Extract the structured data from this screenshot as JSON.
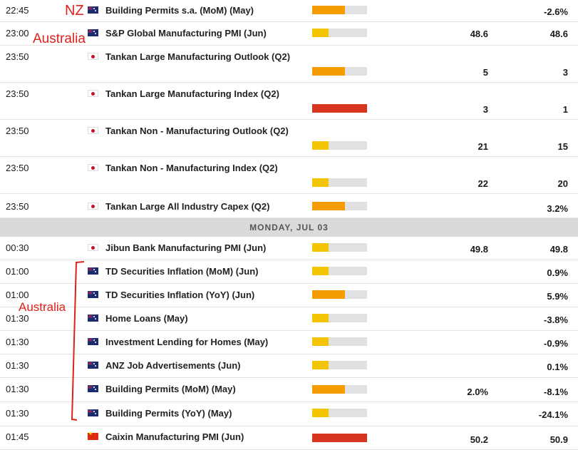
{
  "annotations": {
    "nz": "NZ",
    "australia_top": "Australia",
    "australia_side": "Australia"
  },
  "colors": {
    "low": "#f5c400",
    "medium": "#f59c00",
    "high": "#d73520",
    "bar_bg": "#e1e1e1",
    "annotation": "#e0201a"
  },
  "day_header": "MONDAY, JUL 03",
  "rows": [
    {
      "time": "22:45",
      "flag": "nz",
      "flag_icon": "new-zealand-flag-icon",
      "event": "Building Permits s.a. (MoM) (May)",
      "impact": 0.6,
      "impact_level": "medium",
      "forecast": "",
      "previous": "-2.6%"
    },
    {
      "time": "23:00",
      "flag": "au",
      "flag_icon": "australia-flag-icon",
      "event": "S&P Global Manufacturing PMI (Jun)",
      "impact": 0.3,
      "impact_level": "low",
      "forecast": "48.6",
      "previous": "48.6"
    },
    {
      "time": "23:50",
      "flag": "jp",
      "flag_icon": "japan-flag-icon",
      "event": "Tankan Large Manufacturing Outlook (Q2)",
      "impact": 0.6,
      "impact_level": "medium",
      "forecast": "5",
      "previous": "3"
    },
    {
      "time": "23:50",
      "flag": "jp",
      "flag_icon": "japan-flag-icon",
      "event": "Tankan Large Manufacturing Index (Q2)",
      "impact": 1.0,
      "impact_level": "high",
      "forecast": "3",
      "previous": "1"
    },
    {
      "time": "23:50",
      "flag": "jp",
      "flag_icon": "japan-flag-icon",
      "event": "Tankan Non - Manufacturing Outlook (Q2)",
      "impact": 0.3,
      "impact_level": "low",
      "forecast": "21",
      "previous": "15"
    },
    {
      "time": "23:50",
      "flag": "jp",
      "flag_icon": "japan-flag-icon",
      "event": "Tankan Non - Manufacturing Index (Q2)",
      "impact": 0.3,
      "impact_level": "low",
      "forecast": "22",
      "previous": "20"
    },
    {
      "time": "23:50",
      "flag": "jp",
      "flag_icon": "japan-flag-icon",
      "event": "Tankan Large All Industry Capex (Q2)",
      "impact": 0.6,
      "impact_level": "medium",
      "forecast": "",
      "previous": "3.2%"
    },
    {
      "time": "00:30",
      "flag": "jp",
      "flag_icon": "japan-flag-icon",
      "event": "Jibun Bank Manufacturing PMI (Jun)",
      "impact": 0.3,
      "impact_level": "low",
      "forecast": "49.8",
      "previous": "49.8"
    },
    {
      "time": "01:00",
      "flag": "au",
      "flag_icon": "australia-flag-icon",
      "event": "TD Securities Inflation (MoM) (Jun)",
      "impact": 0.3,
      "impact_level": "low",
      "forecast": "",
      "previous": "0.9%"
    },
    {
      "time": "01:00",
      "flag": "au",
      "flag_icon": "australia-flag-icon",
      "event": "TD Securities Inflation (YoY) (Jun)",
      "impact": 0.6,
      "impact_level": "medium",
      "forecast": "",
      "previous": "5.9%"
    },
    {
      "time": "01:30",
      "flag": "au",
      "flag_icon": "australia-flag-icon",
      "event": "Home Loans (May)",
      "impact": 0.3,
      "impact_level": "low",
      "forecast": "",
      "previous": "-3.8%"
    },
    {
      "time": "01:30",
      "flag": "au",
      "flag_icon": "australia-flag-icon",
      "event": "Investment Lending for Homes (May)",
      "impact": 0.3,
      "impact_level": "low",
      "forecast": "",
      "previous": "-0.9%"
    },
    {
      "time": "01:30",
      "flag": "au",
      "flag_icon": "australia-flag-icon",
      "event": "ANZ Job Advertisements (Jun)",
      "impact": 0.3,
      "impact_level": "low",
      "forecast": "",
      "previous": "0.1%"
    },
    {
      "time": "01:30",
      "flag": "au",
      "flag_icon": "australia-flag-icon",
      "event": "Building Permits (MoM) (May)",
      "impact": 0.6,
      "impact_level": "medium",
      "forecast": "2.0%",
      "previous": "-8.1%"
    },
    {
      "time": "01:30",
      "flag": "au",
      "flag_icon": "australia-flag-icon",
      "event": "Building Permits (YoY) (May)",
      "impact": 0.3,
      "impact_level": "low",
      "forecast": "",
      "previous": "-24.1%"
    },
    {
      "time": "01:45",
      "flag": "cn",
      "flag_icon": "china-flag-icon",
      "event": "Caixin Manufacturing PMI (Jun)",
      "impact": 1.0,
      "impact_level": "high",
      "forecast": "50.2",
      "previous": "50.9"
    }
  ]
}
